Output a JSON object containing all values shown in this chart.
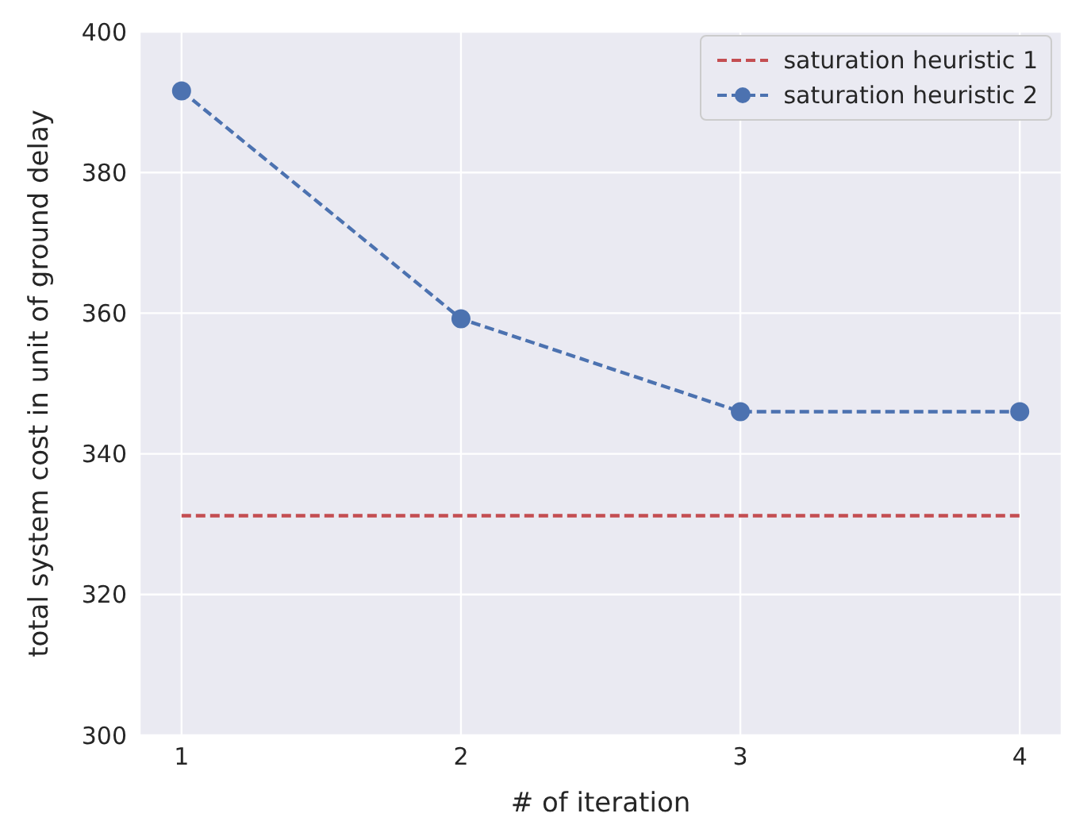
{
  "chart_data": {
    "type": "line",
    "xlabel": "# of iteration",
    "ylabel": "total system cost in unit of ground delay",
    "x": [
      1,
      2,
      3,
      4
    ],
    "series": [
      {
        "name": "saturation heuristic 1",
        "color": "#c44e52",
        "values": [
          331.2,
          331.2,
          331.2,
          331.2
        ],
        "marker": "none",
        "line_style": "dashed"
      },
      {
        "name": "saturation heuristic 2",
        "color": "#4c72b0",
        "values": [
          391.6,
          359.2,
          346.0,
          346.0
        ],
        "marker": "circle",
        "line_style": "dashed"
      }
    ],
    "xlim": [
      0.85,
      4.15
    ],
    "xticks": [
      1,
      2,
      3,
      4
    ],
    "ylim": [
      300,
      400
    ],
    "yticks": [
      300,
      320,
      340,
      360,
      380,
      400
    ],
    "grid": true,
    "legend": "top right"
  }
}
